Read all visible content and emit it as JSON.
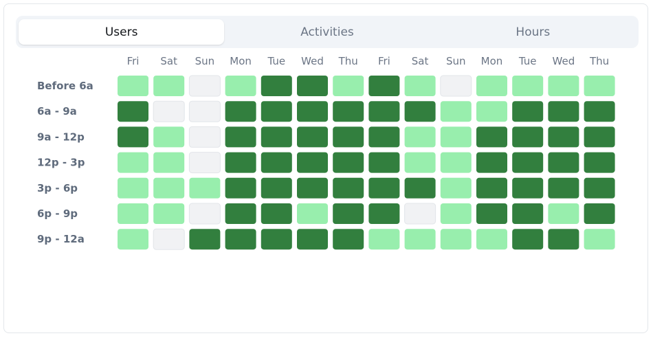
{
  "tabs": [
    {
      "label": "Users",
      "active": true
    },
    {
      "label": "Activities",
      "active": false
    },
    {
      "label": "Hours",
      "active": false
    }
  ],
  "colors": {
    "empty": "#f1f2f4",
    "light": "#98eead",
    "dark": "#327f3e"
  },
  "chart_data": {
    "type": "heatmap",
    "columns": [
      "Fri",
      "Sat",
      "Sun",
      "Mon",
      "Tue",
      "Wed",
      "Thu",
      "Fri",
      "Sat",
      "Sun",
      "Mon",
      "Tue",
      "Wed",
      "Thu"
    ],
    "rows": [
      "Before 6a",
      "6a - 9a",
      "9a - 12p",
      "12p - 3p",
      "3p - 6p",
      "6p - 9p",
      "9p - 12a"
    ],
    "levels": [
      "empty",
      "light",
      "dark"
    ],
    "values": [
      [
        1,
        1,
        0,
        1,
        2,
        2,
        1,
        2,
        1,
        0,
        1,
        1,
        1,
        1
      ],
      [
        2,
        0,
        0,
        2,
        2,
        2,
        2,
        2,
        2,
        1,
        1,
        2,
        2,
        2
      ],
      [
        2,
        1,
        0,
        2,
        2,
        2,
        2,
        2,
        1,
        1,
        2,
        2,
        2,
        2
      ],
      [
        1,
        1,
        0,
        2,
        2,
        2,
        2,
        2,
        1,
        1,
        2,
        2,
        2,
        2
      ],
      [
        1,
        1,
        1,
        2,
        2,
        2,
        2,
        2,
        2,
        1,
        2,
        2,
        2,
        2
      ],
      [
        1,
        1,
        0,
        2,
        2,
        1,
        2,
        2,
        0,
        1,
        2,
        2,
        1,
        2
      ],
      [
        1,
        0,
        2,
        2,
        2,
        2,
        2,
        1,
        1,
        1,
        1,
        2,
        2,
        1
      ]
    ]
  }
}
